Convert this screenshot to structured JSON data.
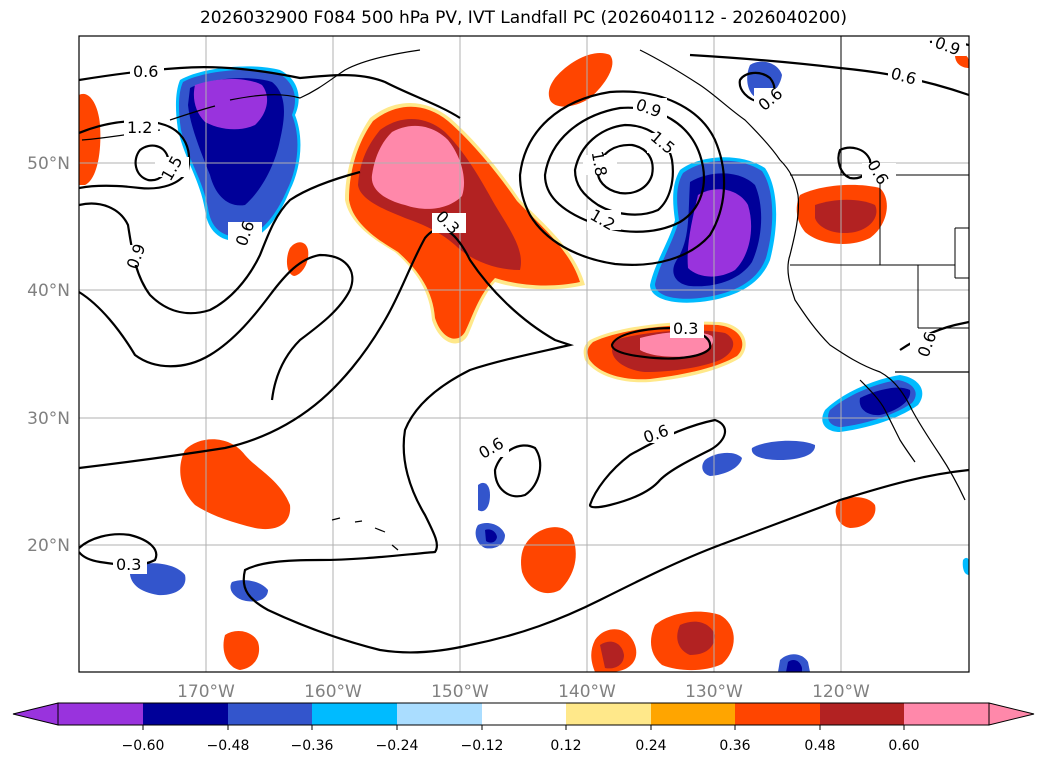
{
  "title": "2026032900 F084 500 hPa PV, IVT Landfall PC (2026040112 - 2026040200)",
  "map": {
    "lat_labels": [
      "50°N",
      "40°N",
      "30°N",
      "20°N"
    ],
    "lon_labels": [
      "170°W",
      "160°W",
      "150°W",
      "140°W",
      "130°W",
      "120°W"
    ],
    "contour_labels": [
      "0.6",
      "0.6",
      "1.2",
      "1.5",
      "0.9",
      "0.6",
      "0.3",
      "0.9",
      "1.5",
      "1.8",
      "1.2",
      "0.3",
      "0.6",
      "0.6",
      "0.6",
      "0.6",
      "0.3",
      "0.6",
      "0.9"
    ]
  },
  "colorbar": {
    "ticks": [
      "−0.60",
      "−0.48",
      "−0.36",
      "−0.24",
      "−0.12",
      "0.12",
      "0.24",
      "0.36",
      "0.48",
      "0.60"
    ],
    "colors": [
      "#9933dd",
      "#000099",
      "#3355cc",
      "#00bbff",
      "#aaddff",
      "#ffffff",
      "#ffe88a",
      "#ffa500",
      "#ff4500",
      "#b22222",
      "#ff88aa"
    ]
  }
}
